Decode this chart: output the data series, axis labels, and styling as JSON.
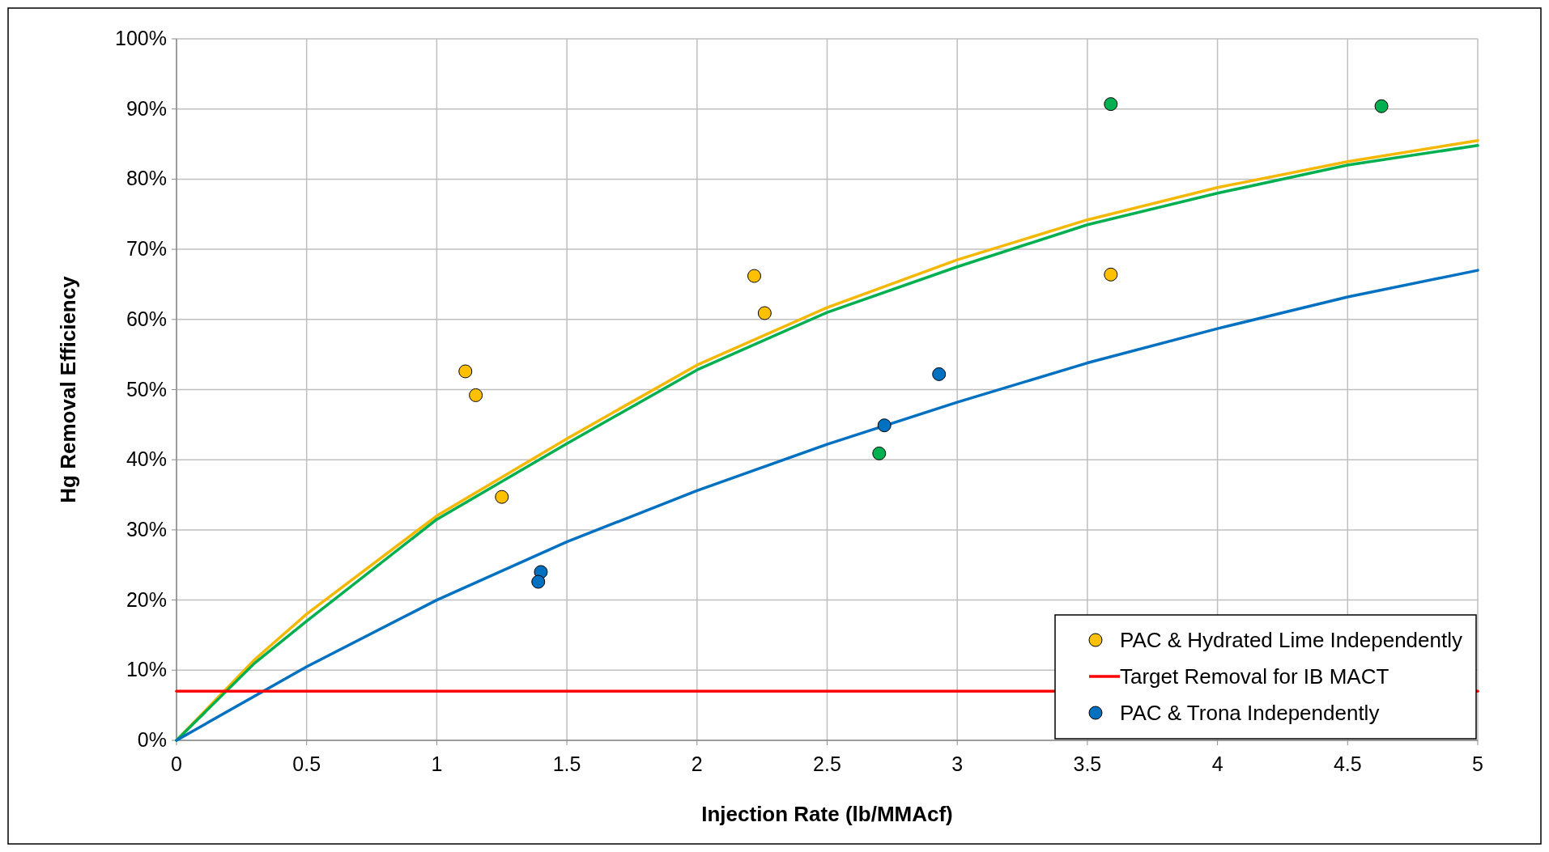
{
  "chart_data": {
    "type": "scatter",
    "xlabel": "Injection Rate (lb/MMAcf)",
    "ylabel": "Hg Removal Efficiency",
    "xlim": [
      0,
      5
    ],
    "xticks": [
      0,
      0.5,
      1,
      1.5,
      2,
      2.5,
      3,
      3.5,
      4,
      4.5,
      5
    ],
    "ylim": [
      0,
      100
    ],
    "yticks": [
      {
        "value": 0,
        "label": "0%"
      },
      {
        "value": 10,
        "label": "10%"
      },
      {
        "value": 20,
        "label": "20%"
      },
      {
        "value": 30,
        "label": "30%"
      },
      {
        "value": 40,
        "label": "40%"
      },
      {
        "value": 50,
        "label": "50%"
      },
      {
        "value": 60,
        "label": "60%"
      },
      {
        "value": 70,
        "label": "70%"
      },
      {
        "value": 80,
        "label": "80%"
      },
      {
        "value": 90,
        "label": "90%"
      },
      {
        "value": 100,
        "label": "100%"
      }
    ],
    "grid": true,
    "legend": "bottom right",
    "marker": "circle",
    "series": [
      {
        "type": "line",
        "color": "#f5b800",
        "x": [
          0,
          0.3,
          0.5,
          1,
          1.5,
          2,
          2.5,
          3,
          3.5,
          4,
          4.5,
          5
        ],
        "values": [
          0,
          11.5,
          18,
          32,
          43,
          53.5,
          61.7,
          68.5,
          74.2,
          78.8,
          82.5,
          85.5
        ],
        "marker": "none"
      },
      {
        "type": "line",
        "color": "#00b050",
        "x": [
          0,
          0.3,
          0.5,
          1,
          1.5,
          2,
          2.5,
          3,
          3.5,
          4,
          4.5,
          5
        ],
        "values": [
          0,
          11,
          17,
          31.5,
          42.3,
          52.8,
          61,
          67.5,
          73.5,
          78,
          82,
          84.8
        ],
        "marker": "none"
      },
      {
        "type": "line",
        "color": "#0070c0",
        "x": [
          0,
          0.5,
          1,
          1.5,
          2,
          2.5,
          3,
          3.5,
          4,
          4.5,
          5
        ],
        "values": [
          0,
          10.5,
          20,
          28.3,
          35.6,
          42.2,
          48.2,
          53.8,
          58.7,
          63.2,
          67
        ],
        "marker": "none"
      },
      {
        "name": "PAC & Hydrated Lime Independently",
        "color": "#ffc000",
        "x": [
          1.11,
          1.15,
          1.25,
          2.22,
          2.26,
          3.59
        ],
        "values": [
          52.6,
          49.2,
          34.7,
          66.2,
          60.9,
          66.4
        ]
      },
      {
        "color": "#00b050",
        "x": [
          3.59,
          4.63,
          2.7
        ],
        "values": [
          90.7,
          90.4,
          40.9
        ]
      },
      {
        "name": "Target Removal for IB MACT",
        "type": "line",
        "color": "#ff0000",
        "x": [
          0,
          5
        ],
        "values": [
          7,
          7
        ],
        "marker": "none"
      },
      {
        "name": "PAC & Trona Independently",
        "color": "#0070c0",
        "x": [
          1.4,
          1.39,
          2.72,
          2.93
        ],
        "values": [
          24,
          22.6,
          44.9,
          52.2
        ]
      }
    ]
  }
}
